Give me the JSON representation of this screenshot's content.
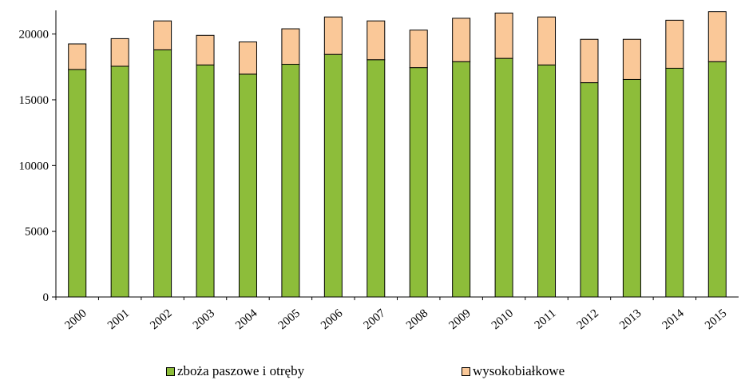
{
  "chart_data": {
    "type": "bar",
    "stacked": true,
    "categories": [
      "2000",
      "2001",
      "2002",
      "2003",
      "2004",
      "2005",
      "2006",
      "2007",
      "2008",
      "2009",
      "2010",
      "2011",
      "2012",
      "2013",
      "2014",
      "2015"
    ],
    "series": [
      {
        "name": "zboża paszowe i otręby",
        "color": "#8dbd3a",
        "values": [
          17300,
          17550,
          18800,
          17650,
          16950,
          17700,
          18450,
          18050,
          17450,
          17900,
          18150,
          17650,
          16300,
          16550,
          17400,
          17900
        ]
      },
      {
        "name": "wysokobiałkowe",
        "color": "#fac898",
        "values": [
          1950,
          2100,
          2200,
          2250,
          2450,
          2700,
          2850,
          2950,
          2850,
          3300,
          3450,
          3650,
          3300,
          3050,
          3650,
          3800
        ]
      }
    ],
    "y_ticks": [
      "0",
      "5000",
      "10000",
      "15000",
      "20000"
    ],
    "ylim": [
      0,
      21800
    ],
    "legend_position": "bottom",
    "grid": false
  }
}
